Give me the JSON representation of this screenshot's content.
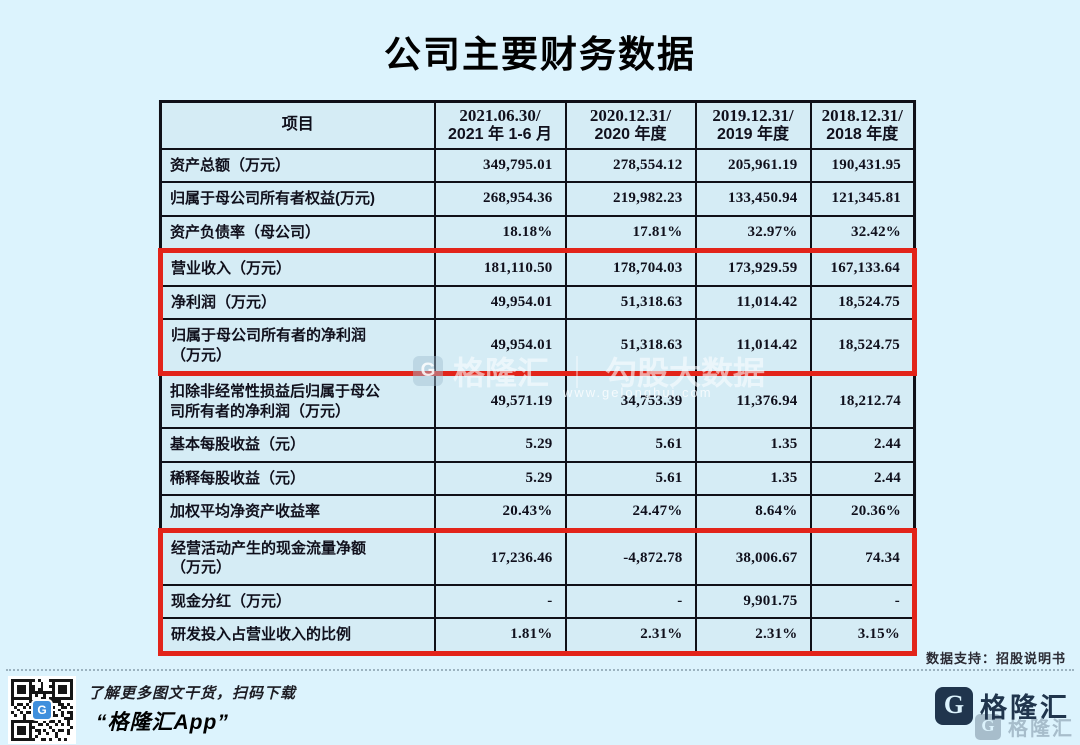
{
  "page": {
    "title": "公司主要财务数据",
    "source_note": "数据支持：招股说明书",
    "background_color": "#dcf3fd",
    "table_cell_color": "#d5ecf5",
    "highlight_color": "#e2241a",
    "brand_color": "#20354d"
  },
  "table": {
    "columns": [
      {
        "label": "项目"
      },
      {
        "line1": "2021.06.30/",
        "line2": "2021 年 1-6 月"
      },
      {
        "line1": "2020.12.31/",
        "line2": "2020 年度"
      },
      {
        "line1": "2019.12.31/",
        "line2": "2019 年度"
      },
      {
        "line1": "2018.12.31/",
        "line2": "2018 年度"
      }
    ],
    "rows": [
      {
        "label": "资产总额（万元）",
        "values": [
          "349,795.01",
          "278,554.12",
          "205,961.19",
          "190,431.95"
        ],
        "highlight": false
      },
      {
        "label": "归属于母公司所有者权益(万元)",
        "values": [
          "268,954.36",
          "219,982.23",
          "133,450.94",
          "121,345.81"
        ],
        "highlight": false
      },
      {
        "label": "资产负债率（母公司）",
        "values": [
          "18.18%",
          "17.81%",
          "32.97%",
          "32.42%"
        ],
        "highlight": false
      },
      {
        "label": "营业收入（万元）",
        "values": [
          "181,110.50",
          "178,704.03",
          "173,929.59",
          "167,133.64"
        ],
        "highlight": true
      },
      {
        "label": "净利润（万元）",
        "values": [
          "49,954.01",
          "51,318.63",
          "11,014.42",
          "18,524.75"
        ],
        "highlight": true
      },
      {
        "label": "归属于母公司所有者的净利润\n（万元）",
        "values": [
          "49,954.01",
          "51,318.63",
          "11,014.42",
          "18,524.75"
        ],
        "highlight": true
      },
      {
        "label": "扣除非经常性损益后归属于母公\n司所有者的净利润（万元）",
        "values": [
          "49,571.19",
          "34,753.39",
          "11,376.94",
          "18,212.74"
        ],
        "highlight": false
      },
      {
        "label": "基本每股收益（元）",
        "values": [
          "5.29",
          "5.61",
          "1.35",
          "2.44"
        ],
        "highlight": false
      },
      {
        "label": "稀释每股收益（元）",
        "values": [
          "5.29",
          "5.61",
          "1.35",
          "2.44"
        ],
        "highlight": false
      },
      {
        "label": "加权平均净资产收益率",
        "values": [
          "20.43%",
          "24.47%",
          "8.64%",
          "20.36%"
        ],
        "highlight": false
      },
      {
        "label": "经营活动产生的现金流量净额\n（万元）",
        "values": [
          "17,236.46",
          "-4,872.78",
          "38,006.67",
          "74.34"
        ],
        "highlight": true
      },
      {
        "label": "现金分红（万元）",
        "values": [
          "-",
          "-",
          "9,901.75",
          "-"
        ],
        "highlight": true
      },
      {
        "label": "研发投入占营业收入的比例",
        "values": [
          "1.81%",
          "2.31%",
          "2.31%",
          "3.15%"
        ],
        "highlight": true
      }
    ]
  },
  "watermark": {
    "logo_letter": "G",
    "brand": "格隆汇",
    "separator": "｜",
    "product": "勾股大数据",
    "url": "www.gelonghui.com"
  },
  "footer": {
    "caption_line1": "了解更多图文干货，扫码下载",
    "caption_line2": "“格隆汇App”",
    "brand": "格隆汇",
    "brand_logo_letter": "G",
    "qr_logo_letter": "G",
    "qr_logo_color": "#3f8fdd"
  }
}
